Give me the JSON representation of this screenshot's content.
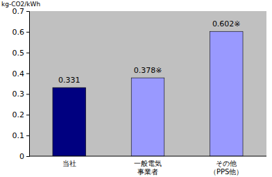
{
  "chart_data": {
    "type": "bar",
    "y_label": "kg-CO2/kWh",
    "categories": [
      "当社",
      "一般電気\n事業者",
      "その他\n（PPS他）"
    ],
    "values": [
      0.331,
      0.378,
      0.602
    ],
    "value_labels": [
      "0.331",
      "0.378※",
      "0.602※"
    ],
    "colors": [
      "#000080",
      "#9999ff",
      "#9999ff"
    ],
    "ylim": [
      0,
      0.7
    ],
    "yticks": [
      0,
      0.1,
      0.2,
      0.3,
      0.4,
      0.5,
      0.6,
      0.7
    ],
    "grid": false,
    "data_labels": true
  }
}
